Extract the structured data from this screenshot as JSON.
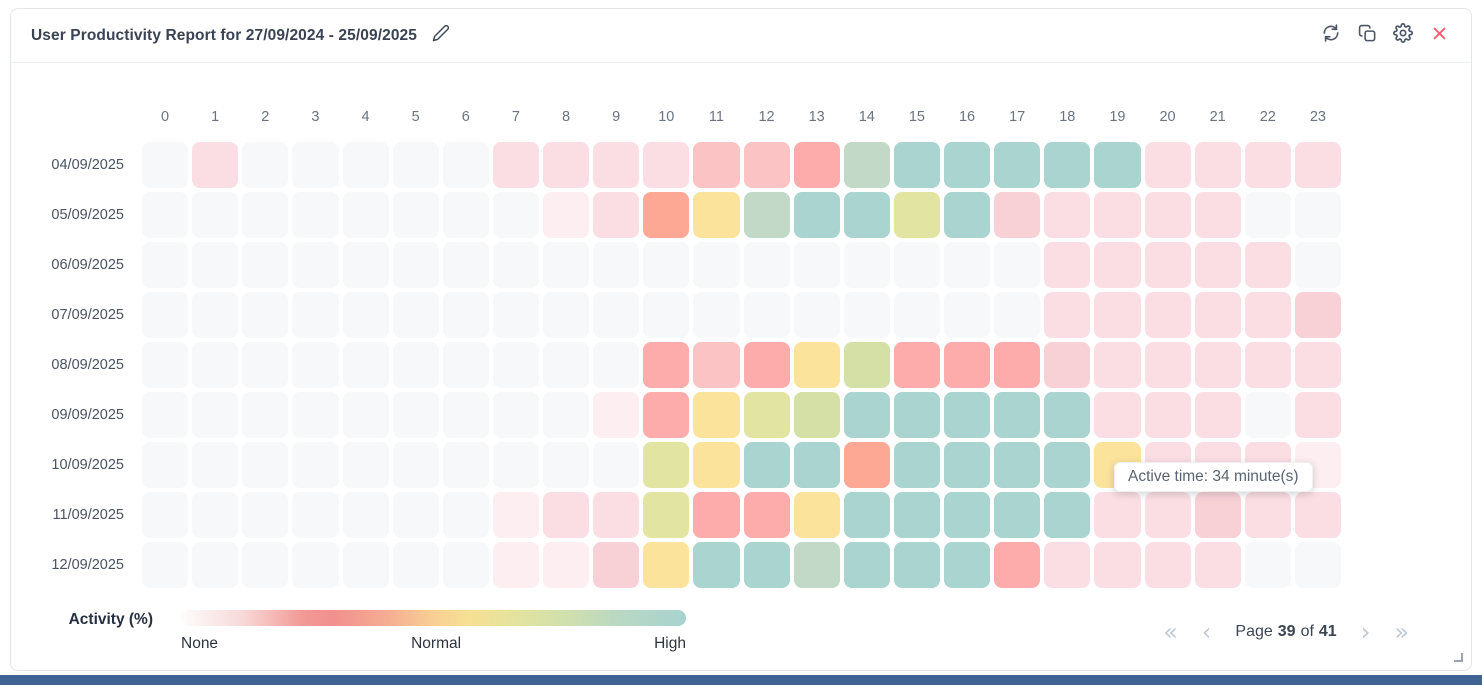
{
  "header": {
    "title": "User Productivity Report for 27/09/2024 - 25/09/2025",
    "icons": [
      "pencil-icon",
      "refresh-icon",
      "copy-icon",
      "gear-icon",
      "close-icon"
    ],
    "close_color": "#ee5f6b",
    "icon_color": "#4b5563"
  },
  "heatmap": {
    "hours": [
      "0",
      "1",
      "2",
      "3",
      "4",
      "5",
      "6",
      "7",
      "8",
      "9",
      "10",
      "11",
      "12",
      "13",
      "14",
      "15",
      "16",
      "17",
      "18",
      "19",
      "20",
      "21",
      "22",
      "23"
    ],
    "palette": {
      "none": "#f7f8fa",
      "p1": "#fdeef2",
      "p2": "#fadee3",
      "p3": "#f8d1d7",
      "p4": "#fbc3c4",
      "salmon": "#feacab",
      "orange": "#fda795",
      "yellow": "#fbe39c",
      "lime": "#e2e4a2",
      "olive": "#d5e0a7",
      "green": "#c1d9c6",
      "teal": "#aad4d0"
    },
    "rows": [
      {
        "date": "04/09/2025",
        "cells": [
          "none",
          "p2",
          "none",
          "none",
          "none",
          "none",
          "none",
          "p2",
          "p2",
          "p2",
          "p2",
          "p4",
          "p4",
          "salmon",
          "green",
          "teal",
          "teal",
          "teal",
          "teal",
          "teal",
          "p2",
          "p2",
          "p2",
          "p2"
        ]
      },
      {
        "date": "05/09/2025",
        "cells": [
          "none",
          "none",
          "none",
          "none",
          "none",
          "none",
          "none",
          "none",
          "p1",
          "p2",
          "orange",
          "yellow",
          "green",
          "teal",
          "teal",
          "lime",
          "teal",
          "p3",
          "p2",
          "p2",
          "p2",
          "p2",
          "none",
          "none"
        ]
      },
      {
        "date": "06/09/2025",
        "cells": [
          "none",
          "none",
          "none",
          "none",
          "none",
          "none",
          "none",
          "none",
          "none",
          "none",
          "none",
          "none",
          "none",
          "none",
          "none",
          "none",
          "none",
          "none",
          "p2",
          "p2",
          "p2",
          "p2",
          "p2",
          "none"
        ]
      },
      {
        "date": "07/09/2025",
        "cells": [
          "none",
          "none",
          "none",
          "none",
          "none",
          "none",
          "none",
          "none",
          "none",
          "none",
          "none",
          "none",
          "none",
          "none",
          "none",
          "none",
          "none",
          "none",
          "p2",
          "p2",
          "p2",
          "p2",
          "p2",
          "p3"
        ]
      },
      {
        "date": "08/09/2025",
        "cells": [
          "none",
          "none",
          "none",
          "none",
          "none",
          "none",
          "none",
          "none",
          "none",
          "none",
          "salmon",
          "p4",
          "salmon",
          "yellow",
          "olive",
          "salmon",
          "salmon",
          "salmon",
          "p3",
          "p2",
          "p2",
          "p2",
          "p2",
          "p2"
        ]
      },
      {
        "date": "09/09/2025",
        "cells": [
          "none",
          "none",
          "none",
          "none",
          "none",
          "none",
          "none",
          "none",
          "none",
          "p1",
          "salmon",
          "yellow",
          "lime",
          "olive",
          "teal",
          "teal",
          "teal",
          "teal",
          "teal",
          "p2",
          "p2",
          "p2",
          "none",
          "p2"
        ]
      },
      {
        "date": "10/09/2025",
        "cells": [
          "none",
          "none",
          "none",
          "none",
          "none",
          "none",
          "none",
          "none",
          "none",
          "none",
          "lime",
          "yellow",
          "teal",
          "teal",
          "orange",
          "teal",
          "teal",
          "teal",
          "teal",
          "yellow",
          "p2",
          "p2",
          "p2",
          "p1"
        ]
      },
      {
        "date": "11/09/2025",
        "cells": [
          "none",
          "none",
          "none",
          "none",
          "none",
          "none",
          "none",
          "p1",
          "p2",
          "p2",
          "lime",
          "salmon",
          "salmon",
          "yellow",
          "teal",
          "teal",
          "teal",
          "teal",
          "teal",
          "p2",
          "p2",
          "p3",
          "p2",
          "p2"
        ]
      },
      {
        "date": "12/09/2025",
        "cells": [
          "none",
          "none",
          "none",
          "none",
          "none",
          "none",
          "none",
          "p1",
          "p1",
          "p3",
          "yellow",
          "teal",
          "teal",
          "green",
          "teal",
          "teal",
          "teal",
          "salmon",
          "p2",
          "p2",
          "p2",
          "p2",
          "none",
          "none"
        ]
      }
    ]
  },
  "tooltip": {
    "text": "Active time: 34 minute(s)"
  },
  "legend": {
    "title": "Activity (%)",
    "labels": [
      "None",
      "Normal",
      "High"
    ]
  },
  "pagination": {
    "first_icon": "«",
    "prev_icon": "‹",
    "next_icon": "›",
    "last_icon": "»",
    "page_word": "Page",
    "current": "39",
    "of_word": "of",
    "total": "41"
  }
}
